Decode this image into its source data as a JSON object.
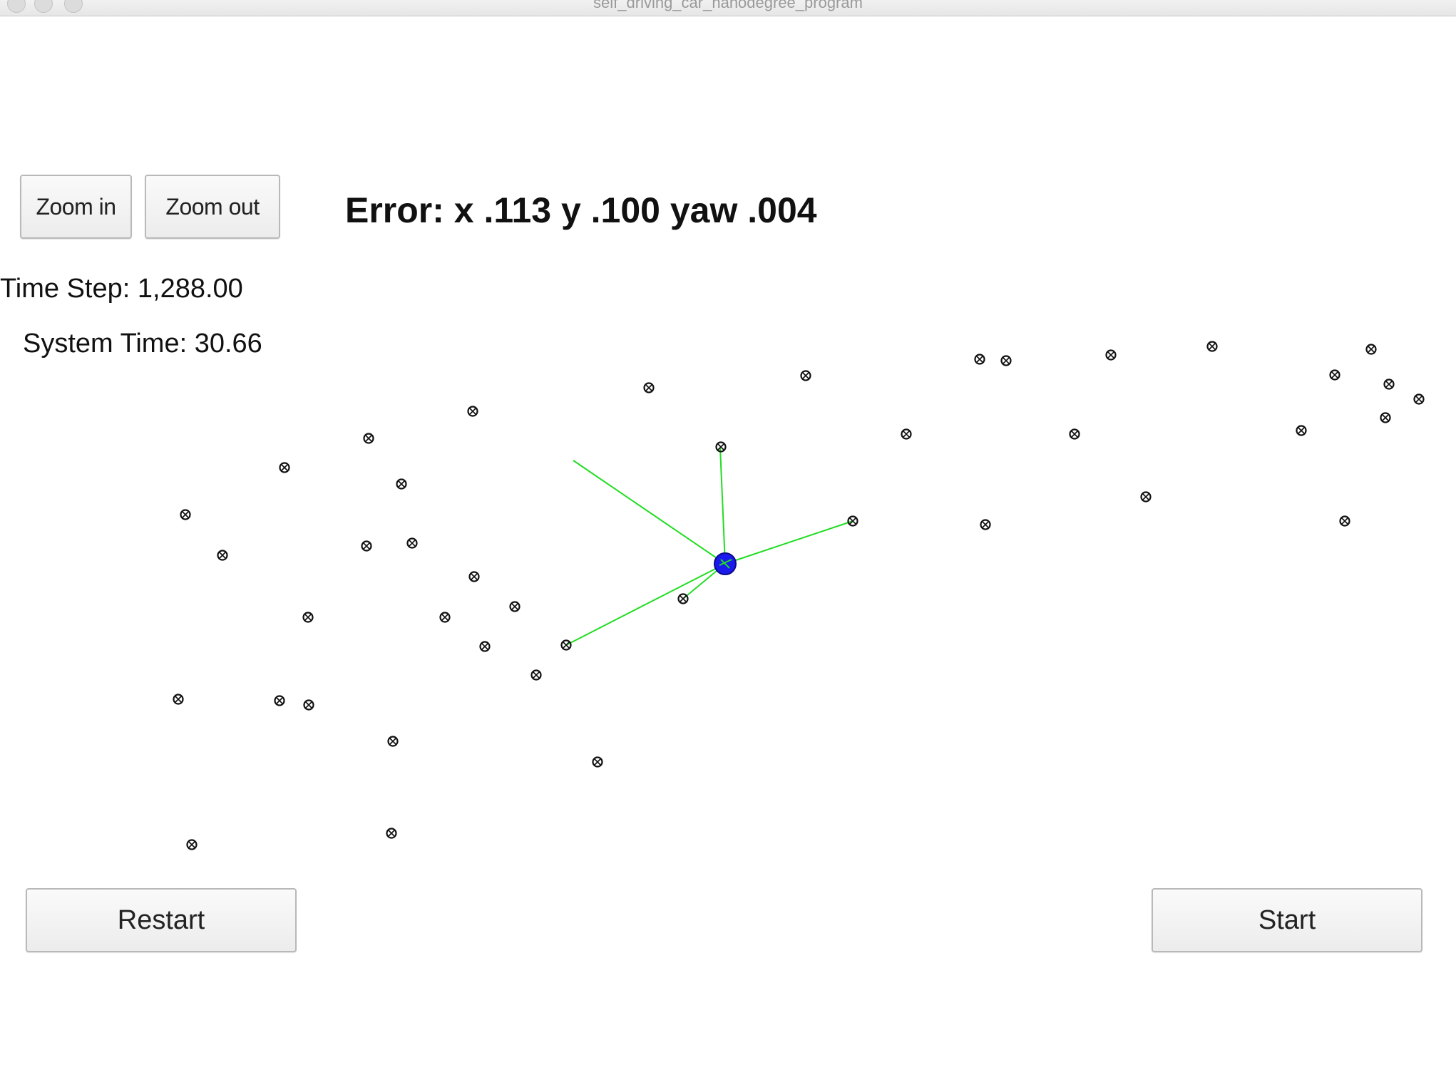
{
  "window": {
    "title": "self_driving_car_nanodegree_program"
  },
  "toolbar": {
    "zoom_in_label": "Zoom in",
    "zoom_out_label": "Zoom out"
  },
  "status": {
    "error_text": "Error: x .113 y .100 yaw .004",
    "time_step_text": "Time Step: 1,288.00",
    "system_time_text": "System Time: 30.66"
  },
  "controls": {
    "restart_label": "Restart",
    "start_label": "Start"
  },
  "colors": {
    "observation_line": "#22dd22",
    "vehicle": "#1a1aee",
    "landmark": "#111111"
  }
}
